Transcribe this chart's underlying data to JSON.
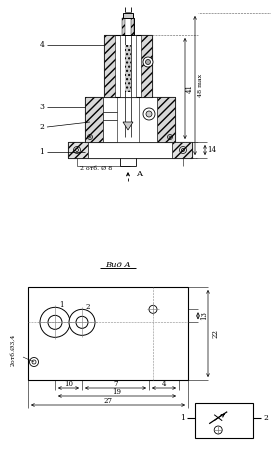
{
  "bg_color": "#ffffff",
  "line_color": "#000000",
  "fig_width": 2.71,
  "fig_height": 4.55,
  "dpi": 100,
  "labels": {
    "part1": "1",
    "part2": "2",
    "part3": "3",
    "part4": "4",
    "dim_41": "41",
    "dim_48max": "48 max",
    "dim_14": "14",
    "holes_top": "2 отб. Ø 8",
    "arrow_A": "A",
    "view_A": "Вид А",
    "dim_13": "13",
    "dim_22": "22",
    "holes_side": "2отб.Ø3,4",
    "dim_10": "10",
    "dim_7": "7",
    "dim_4": "4",
    "dim_19": "19",
    "dim_27": "27",
    "sym_1": "1",
    "sym_2": "2",
    "circle1_label": "1",
    "circle2_label": "2"
  }
}
